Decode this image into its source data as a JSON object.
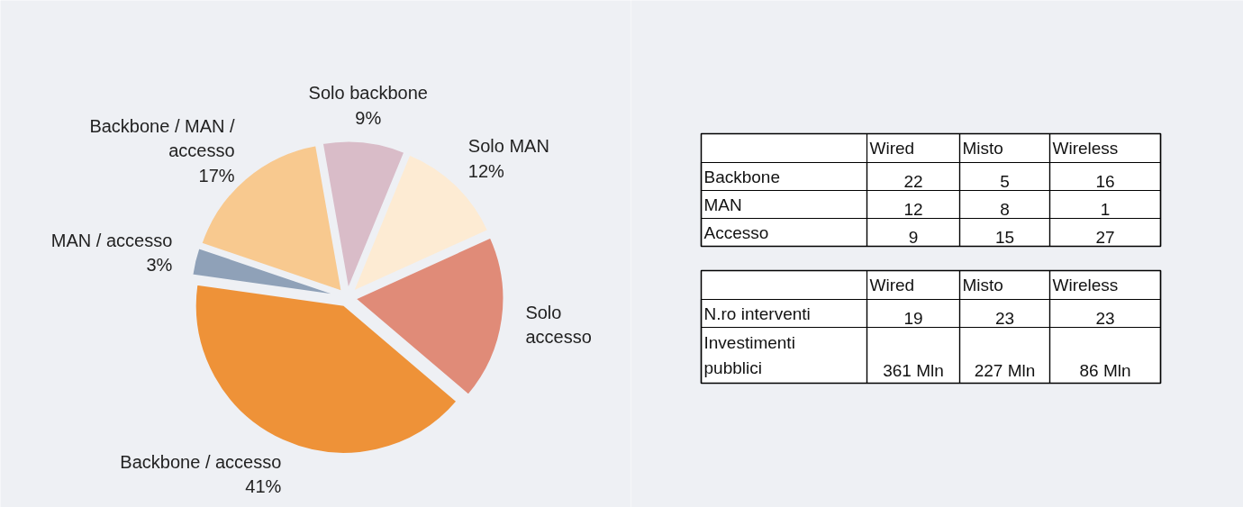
{
  "chart_data": [
    {
      "type": "pie",
      "categories": [
        "Solo backbone",
        "Solo MAN",
        "Solo\naccesso",
        "Backbone / accesso",
        "MAN / accesso",
        "Backbone / MAN /\naccesso"
      ],
      "values": [
        9,
        12,
        18,
        41,
        3,
        17
      ],
      "colors": [
        "#d9bcc8",
        "#fdebd3",
        "#e08b78",
        "#ee9238",
        "#8fa1b8",
        "#f8c98f"
      ],
      "value_labels": [
        "9%",
        "12%",
        null,
        "41%",
        "3%",
        "17%"
      ]
    },
    {
      "type": "other",
      "categories": [
        "Wired",
        "Misto",
        "Wireless"
      ],
      "y_categories": [
        "Backbone",
        "MAN",
        "Accesso"
      ],
      "cell_labels": [
        [
          "22",
          "5",
          "16"
        ],
        [
          "12",
          "8",
          "1"
        ],
        [
          "9",
          "15",
          "27"
        ]
      ]
    },
    {
      "type": "other",
      "categories": [
        "Wired",
        "Misto",
        "Wireless"
      ],
      "y_categories": [
        "N.ro interventi",
        "Investimenti\npubblici"
      ],
      "cell_labels": [
        [
          "19",
          "23",
          "23"
        ],
        [
          "361 Mln",
          "227 Mln",
          "86 Mln"
        ]
      ]
    }
  ]
}
